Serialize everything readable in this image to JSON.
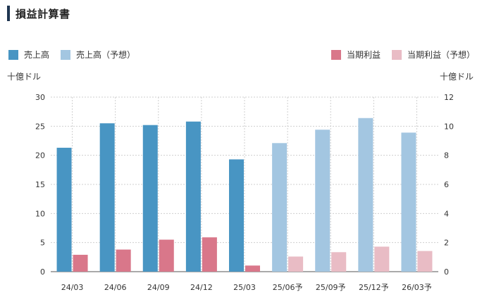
{
  "header": {
    "title": "損益計算書"
  },
  "colors": {
    "revenue": "#4895c3",
    "revenue_forecast": "#a3c6e1",
    "profit": "#d9778a",
    "profit_forecast": "#e9bcc5",
    "grid": "#cfcfcf",
    "header_bar": "#1f3550"
  },
  "chart_data": {
    "type": "bar",
    "title": "",
    "y_left_unit": "十億ドル",
    "y_right_unit": "十億ドル",
    "categories": [
      "24/03",
      "24/06",
      "24/09",
      "24/12",
      "25/03",
      "25/06予",
      "25/09予",
      "25/12予",
      "26/03予"
    ],
    "forecast_from_index": 5,
    "ylim_left": [
      0,
      30
    ],
    "ylim_right": [
      0,
      12
    ],
    "yticks_left": [
      "0",
      "5",
      "10",
      "15",
      "20",
      "25",
      "30"
    ],
    "yticks_right": [
      "0",
      "2",
      "4",
      "6",
      "8",
      "10",
      "12"
    ],
    "grid": true,
    "series": [
      {
        "name": "売上高",
        "axis": "left",
        "values": [
          21.3,
          25.5,
          25.2,
          25.8,
          19.3,
          null,
          null,
          null,
          null
        ]
      },
      {
        "name": "売上高（予想）",
        "axis": "left",
        "values": [
          null,
          null,
          null,
          null,
          null,
          22.1,
          24.4,
          26.4,
          23.9
        ]
      },
      {
        "name": "当期利益",
        "axis": "right",
        "values": [
          1.16,
          1.52,
          2.2,
          2.36,
          0.42,
          null,
          null,
          null,
          null
        ]
      },
      {
        "name": "当期利益（予想）",
        "axis": "right",
        "values": [
          null,
          null,
          null,
          null,
          null,
          1.04,
          1.34,
          1.72,
          1.42
        ]
      }
    ],
    "legend_placement": "top"
  }
}
